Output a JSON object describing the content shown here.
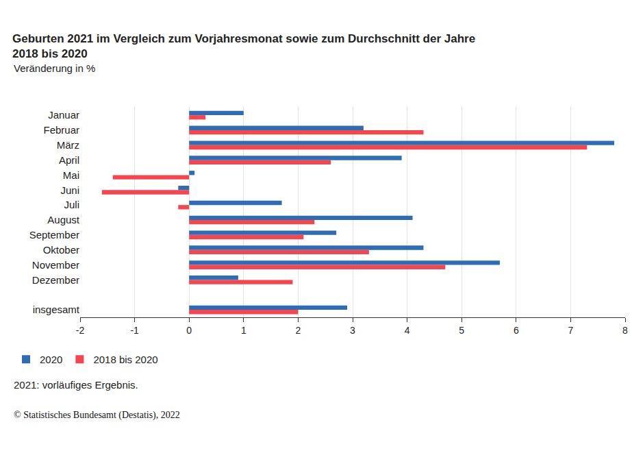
{
  "chart_data": {
    "type": "bar",
    "orientation": "horizontal",
    "title": "Geburten 2021 im Vergleich zum Vorjahresmonat sowie zum Durchschnitt der Jahre 2018 bis 2020",
    "subtitle": "Veränderung in %",
    "categories": [
      "Januar",
      "Februar",
      "März",
      "April",
      "Mai",
      "Juni",
      "Juli",
      "August",
      "September",
      "Oktober",
      "November",
      "Dezember",
      null,
      "insgesamt"
    ],
    "series": [
      {
        "name": "2020",
        "color": "#2e6db4",
        "values": [
          1.0,
          3.2,
          7.8,
          3.9,
          0.1,
          -0.2,
          1.7,
          4.1,
          2.7,
          4.3,
          5.7,
          0.9,
          null,
          2.9
        ]
      },
      {
        "name": "2018 bis 2020",
        "color": "#f5464f",
        "values": [
          0.3,
          4.3,
          7.3,
          2.6,
          -1.4,
          -1.6,
          -0.2,
          2.3,
          2.1,
          3.3,
          4.7,
          1.9,
          null,
          2.0
        ]
      }
    ],
    "xlim": [
      -2,
      8
    ],
    "xticks": [
      -2,
      -1,
      0,
      1,
      2,
      3,
      4,
      5,
      6,
      7,
      8
    ],
    "grid": true,
    "legend": "bottom-left",
    "notes": "2021: vorläufiges Ergebnis.",
    "source": "© Statistisches Bundesamt (Destatis), 2022"
  }
}
